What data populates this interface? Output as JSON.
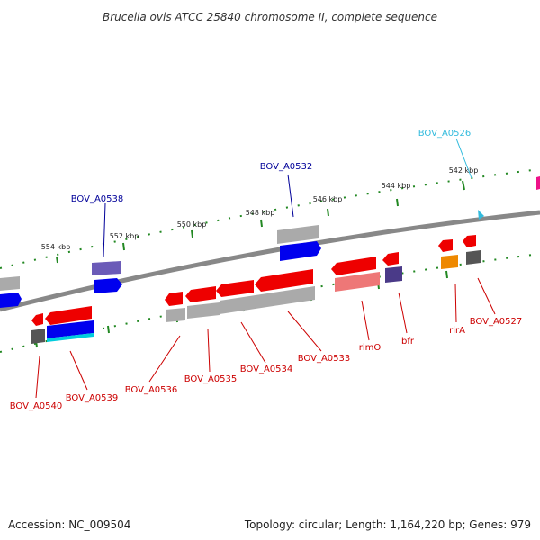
{
  "title": "Brucella ovis ATCC 25840 chromosome II, complete sequence",
  "footer": {
    "accession": "Accession: NC_009504",
    "topology": "Topology: circular; Length: 1,164,220 bp; Genes: 979"
  },
  "colors": {
    "backbone": "#888888",
    "tick_dots": "#228822",
    "gene_red": "#ee0000",
    "gene_blue": "#0000ee",
    "gene_grey": "#aaaaaa",
    "label_red": "#cc0000",
    "label_blue": "#000099",
    "label_cyan": "#33bbdd"
  },
  "ticks": [
    "554 kbp",
    "552 kbp",
    "550 kbp",
    "548 kbp",
    "546 kbp",
    "544 kbp",
    "542 kbp"
  ],
  "labels_top": [
    "BOV_A0538",
    "BOV_A0532",
    "BOV_A0526"
  ],
  "labels_bottom": [
    "BOV_A0540",
    "BOV_A0539",
    "BOV_A0536",
    "BOV_A0535",
    "BOV_A0534",
    "BOV_A0533",
    "rimO",
    "bfr",
    "rirA",
    "BOV_A0527"
  ]
}
